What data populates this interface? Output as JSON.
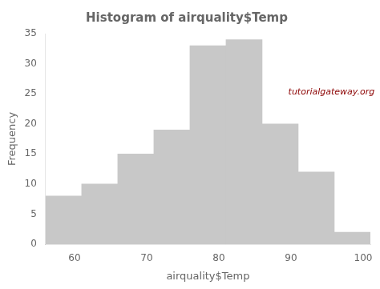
{
  "chart_data": {
    "type": "histogram",
    "title": "Histogram of airquality$Temp",
    "xlabel": "airquality$Temp",
    "ylabel": "Frequency",
    "bins": [
      56,
      61,
      66,
      71,
      76,
      81,
      86,
      91,
      96,
      101
    ],
    "values": [
      8,
      10,
      15,
      19,
      33,
      34,
      20,
      12,
      2
    ],
    "color": "#c8c8c8",
    "xlim": [
      56,
      101
    ],
    "xticks": [
      60,
      70,
      80,
      90,
      100
    ],
    "ylim": [
      0,
      35
    ],
    "yticks": [
      0,
      5,
      10,
      15,
      20,
      25,
      30,
      35
    ],
    "grid": false,
    "annotations": [
      {
        "text": "tutorialgateway.org",
        "color": "#8B0000"
      }
    ]
  }
}
